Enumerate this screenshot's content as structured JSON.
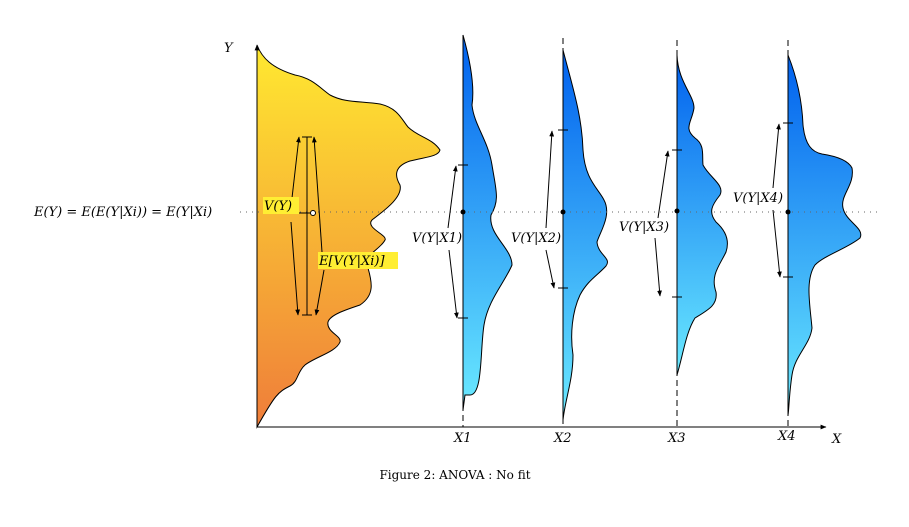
{
  "figure": {
    "caption": "Figure 2: ANOVA : No fit",
    "axis_y_label": "Y",
    "axis_x_label": "X",
    "mean_equation": "E(Y) = E(E(Y|Xi)) = E(Y|Xi)",
    "total_variance_label": "V(Y)",
    "expected_variance_label": "E[V(Y|Xi)]",
    "groups": [
      {
        "x_label": "X1",
        "variance_label": "V(Y|X1)"
      },
      {
        "x_label": "X2",
        "variance_label": "V(Y|X2)"
      },
      {
        "x_label": "X3",
        "variance_label": "V(Y|X3)"
      },
      {
        "x_label": "X4",
        "variance_label": "V(Y|X4)"
      }
    ],
    "colors": {
      "marginal_top": "#ffe930",
      "marginal_bottom": "#ef7d3a",
      "conditional_top": "#0066ee",
      "conditional_bottom": "#66e6ff",
      "label_highlight": "#ffee33"
    }
  }
}
